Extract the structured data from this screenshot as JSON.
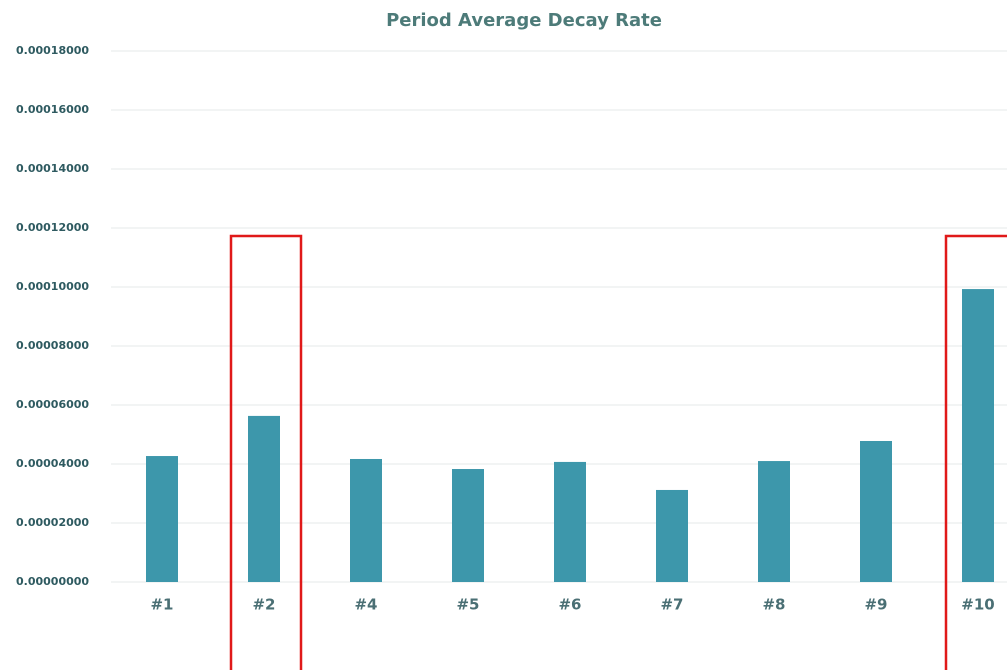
{
  "chart_data": {
    "type": "bar",
    "title": "Period Average Decay Rate",
    "categories": [
      "#1",
      "#2",
      "#4",
      "#5",
      "#6",
      "#7",
      "#8",
      "#9",
      "#10"
    ],
    "values": [
      4.27e-05,
      5.63e-05,
      4.17e-05,
      3.83e-05,
      4.07e-05,
      3.12e-05,
      4.1e-05,
      4.78e-05,
      9.93e-05
    ],
    "color": "#3d97ab",
    "ylim": [
      0,
      0.00018
    ],
    "yticks": [
      {
        "value": 0,
        "label": "0.00000000"
      },
      {
        "value": 2e-05,
        "label": "0.00002000"
      },
      {
        "value": 4e-05,
        "label": "0.00004000"
      },
      {
        "value": 6e-05,
        "label": "0.00006000"
      },
      {
        "value": 8e-05,
        "label": "0.00008000"
      },
      {
        "value": 0.0001,
        "label": "0.00010000"
      },
      {
        "value": 0.00012,
        "label": "0.00012000"
      },
      {
        "value": 0.00014,
        "label": "0.00014000"
      },
      {
        "value": 0.00016,
        "label": "0.00016000"
      },
      {
        "value": 0.00018,
        "label": "0.00018000"
      }
    ],
    "grid": true
  }
}
